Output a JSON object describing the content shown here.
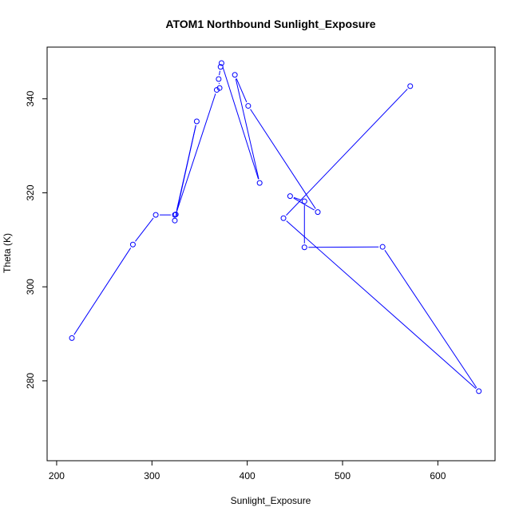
{
  "chart_data": {
    "type": "line",
    "title": "ATOM1 Northbound Sunlight_Exposure",
    "xlabel": "Sunlight_Exposure",
    "ylabel": "Theta (K)",
    "xlim": [
      190,
      660
    ],
    "ylim": [
      263,
      351
    ],
    "xticks": [
      200,
      300,
      400,
      500,
      600
    ],
    "yticks": [
      280,
      300,
      320,
      340
    ],
    "grid": false,
    "line_color": "#0000ff",
    "marker": "open-circle",
    "series": [
      {
        "points": [
          {
            "x": 216,
            "y": 289.1
          },
          {
            "x": 280,
            "y": 309.0
          },
          {
            "x": 304,
            "y": 315.3
          },
          {
            "x": 324,
            "y": 315.3
          },
          {
            "x": 324,
            "y": 314.1
          },
          {
            "x": 347,
            "y": 335.2
          },
          {
            "x": 325,
            "y": 315.4
          },
          {
            "x": 368,
            "y": 341.9
          },
          {
            "x": 371,
            "y": 342.3
          },
          {
            "x": 370,
            "y": 344.2
          },
          {
            "x": 372,
            "y": 346.8
          },
          {
            "x": 373,
            "y": 347.6
          },
          {
            "x": 413,
            "y": 322.1
          },
          {
            "x": 387,
            "y": 345.1
          },
          {
            "x": 401,
            "y": 338.5
          },
          {
            "x": 474,
            "y": 315.9
          },
          {
            "x": 445,
            "y": 319.3
          },
          {
            "x": 460,
            "y": 318.2
          },
          {
            "x": 460,
            "y": 308.4
          },
          {
            "x": 542,
            "y": 308.5
          },
          {
            "x": 643,
            "y": 277.8
          },
          {
            "x": 438,
            "y": 314.6
          },
          {
            "x": 571,
            "y": 342.7
          }
        ]
      }
    ]
  }
}
